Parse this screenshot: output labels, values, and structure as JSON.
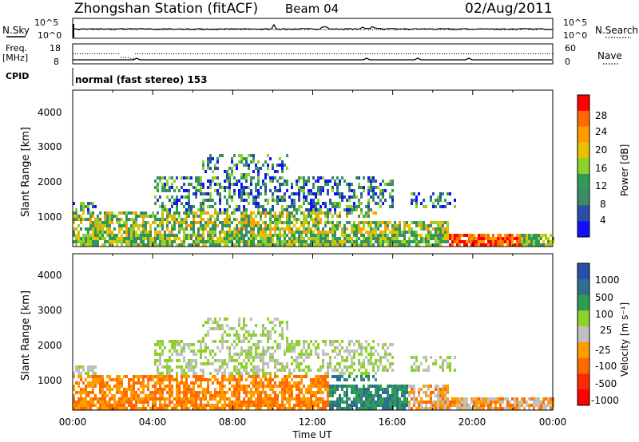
{
  "header": {
    "station": "Zhongshan Station (fitACF)",
    "beam": "Beam 04",
    "date": "02/Aug/2011"
  },
  "top_panels": {
    "nsky_label": "N.Sky",
    "nsky_ticks": [
      "10^5",
      "10^0"
    ],
    "nsearch_label": "N.Search",
    "nsearch_ticks": [
      "10^5",
      "10^0"
    ],
    "freq_label_1": "Freq.",
    "freq_label_2": "[MHz]",
    "freq_ticks": [
      "18",
      "8"
    ],
    "nave_label": "Nave",
    "nave_ticks": [
      "60",
      "0"
    ],
    "cpid_label": "CPID",
    "cpid_text": "normal (fast stereo) 153"
  },
  "axes": {
    "ylabel": "Slant Range [km]",
    "yticks": [
      "4000",
      "3000",
      "2000",
      "1000"
    ],
    "xlabel": "Time UT",
    "xticks": [
      "00:00",
      "04:00",
      "08:00",
      "12:00",
      "16:00",
      "20:00",
      "00:00"
    ]
  },
  "power_colorbar": {
    "label": "Power [dB]",
    "ticks": [
      "28",
      "24",
      "20",
      "16",
      "12",
      "8",
      "4"
    ],
    "colors": [
      "#ff0000",
      "#ff6a00",
      "#ff9d00",
      "#e6c200",
      "#8fd12b",
      "#2e9c55",
      "#3d8a66",
      "#2a4fa8",
      "#1010ff"
    ]
  },
  "velocity_colorbar": {
    "label": "Velocity [m s⁻¹]",
    "ticks": [
      "1000",
      "500",
      "100",
      "25",
      "-25",
      "-100",
      "-500",
      "-1000"
    ],
    "colors": [
      "#2a4fa8",
      "#2e6e8e",
      "#2e9c55",
      "#8fd12b",
      "#c0c0c0",
      "#ff9d00",
      "#ff6a00",
      "#ff2a00",
      "#ff0000"
    ]
  },
  "chart_data": [
    {
      "type": "heatmap",
      "title": "Power",
      "xlabel": "Time UT",
      "ylabel": "Slant Range [km]",
      "x_range_hours": [
        0,
        24
      ],
      "ylim": [
        180,
        4500
      ],
      "colorbar_label": "Power [dB]",
      "colorbar_range": [
        3,
        30
      ]
    },
    {
      "type": "heatmap",
      "title": "Velocity",
      "xlabel": "Time UT",
      "ylabel": "Slant Range [km]",
      "x_range_hours": [
        0,
        24
      ],
      "ylim": [
        180,
        4500
      ],
      "colorbar_label": "Velocity [m s⁻¹]",
      "colorbar_range": [
        -1000,
        1000
      ]
    }
  ]
}
